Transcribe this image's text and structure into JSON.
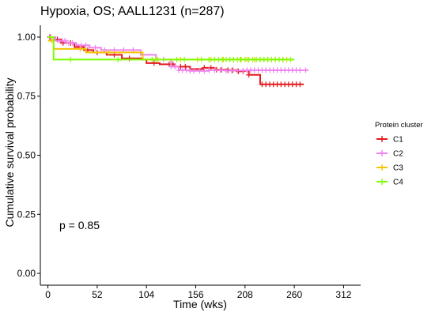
{
  "chart_data": {
    "type": "line",
    "title": "Hypoxia,  OS; AALL1231 (n=287)",
    "xlabel": "Time (wks)",
    "ylabel": "Cumulative survival probability",
    "xlim": [
      -8,
      330
    ],
    "ylim": [
      -0.05,
      1.05
    ],
    "x_ticks": [
      0,
      52,
      104,
      156,
      208,
      260,
      312
    ],
    "y_ticks": [
      0.0,
      0.25,
      0.5,
      0.75,
      1.0
    ],
    "y_tick_labels": [
      "0.00",
      "0.25",
      "0.50",
      "0.75",
      "1.00"
    ],
    "annotation": "p = 0.85",
    "legend": {
      "title": "Protein cluster",
      "position": "right"
    },
    "series": [
      {
        "name": "C1",
        "color": "#e31a1c",
        "steps": [
          [
            0,
            1.0
          ],
          [
            6,
            0.99
          ],
          [
            14,
            0.975
          ],
          [
            28,
            0.958
          ],
          [
            38,
            0.945
          ],
          [
            48,
            0.935
          ],
          [
            62,
            0.925
          ],
          [
            78,
            0.91
          ],
          [
            100,
            0.905
          ],
          [
            104,
            0.89
          ],
          [
            118,
            0.885
          ],
          [
            134,
            0.875
          ],
          [
            150,
            0.865
          ],
          [
            164,
            0.87
          ],
          [
            176,
            0.862
          ],
          [
            190,
            0.86
          ],
          [
            200,
            0.855
          ],
          [
            207,
            0.858
          ],
          [
            212,
            0.84
          ],
          [
            224,
            0.8
          ],
          [
            270,
            0.8
          ]
        ],
        "censor": [
          2,
          10,
          16,
          24,
          32,
          42,
          52,
          70,
          86,
          112,
          128,
          132,
          140,
          145,
          165,
          172,
          178,
          183,
          190,
          195,
          201,
          206,
          212,
          226,
          230,
          234,
          238,
          242,
          246,
          250,
          254,
          258,
          262,
          266
        ]
      },
      {
        "name": "C2",
        "color": "#ee82ee",
        "steps": [
          [
            0,
            1.0
          ],
          [
            8,
            0.985
          ],
          [
            20,
            0.975
          ],
          [
            30,
            0.965
          ],
          [
            44,
            0.955
          ],
          [
            56,
            0.945
          ],
          [
            98,
            0.925
          ],
          [
            114,
            0.905
          ],
          [
            130,
            0.875
          ],
          [
            138,
            0.86
          ],
          [
            150,
            0.857
          ],
          [
            170,
            0.86
          ],
          [
            186,
            0.858
          ],
          [
            210,
            0.86
          ],
          [
            275,
            0.86
          ]
        ],
        "censor": [
          3,
          12,
          15,
          18,
          22,
          26,
          35,
          40,
          50,
          60,
          70,
          80,
          90,
          122,
          130,
          134,
          138,
          142,
          146,
          150,
          154,
          160,
          165,
          170,
          176,
          182,
          188,
          194,
          200,
          206,
          210,
          214,
          218,
          222,
          226,
          230,
          234,
          238,
          242,
          246,
          250,
          254,
          258,
          262,
          266,
          272
        ]
      },
      {
        "name": "C3",
        "color": "#f5c400",
        "steps": [
          [
            0,
            0.985
          ],
          [
            6,
            0.95
          ],
          [
            40,
            0.935
          ],
          [
            100,
            0.905
          ],
          [
            230,
            0.905
          ],
          [
            258,
            0.905
          ]
        ],
        "censor": [
          4,
          34,
          64,
          110,
          116,
          140,
          158,
          172,
          185,
          196,
          203,
          210,
          218,
          224,
          228,
          232,
          236,
          240,
          248,
          252
        ]
      },
      {
        "name": "C4",
        "color": "#7fff00",
        "steps": [
          [
            0,
            1.0
          ],
          [
            6,
            0.905
          ],
          [
            260,
            0.905
          ]
        ],
        "censor": [
          24,
          74,
          110,
          114,
          136,
          144,
          162,
          170,
          176,
          180,
          184,
          188,
          192,
          196,
          200,
          204,
          208,
          212,
          216,
          220,
          224,
          228,
          232,
          236,
          240,
          244,
          248,
          256
        ]
      }
    ]
  }
}
